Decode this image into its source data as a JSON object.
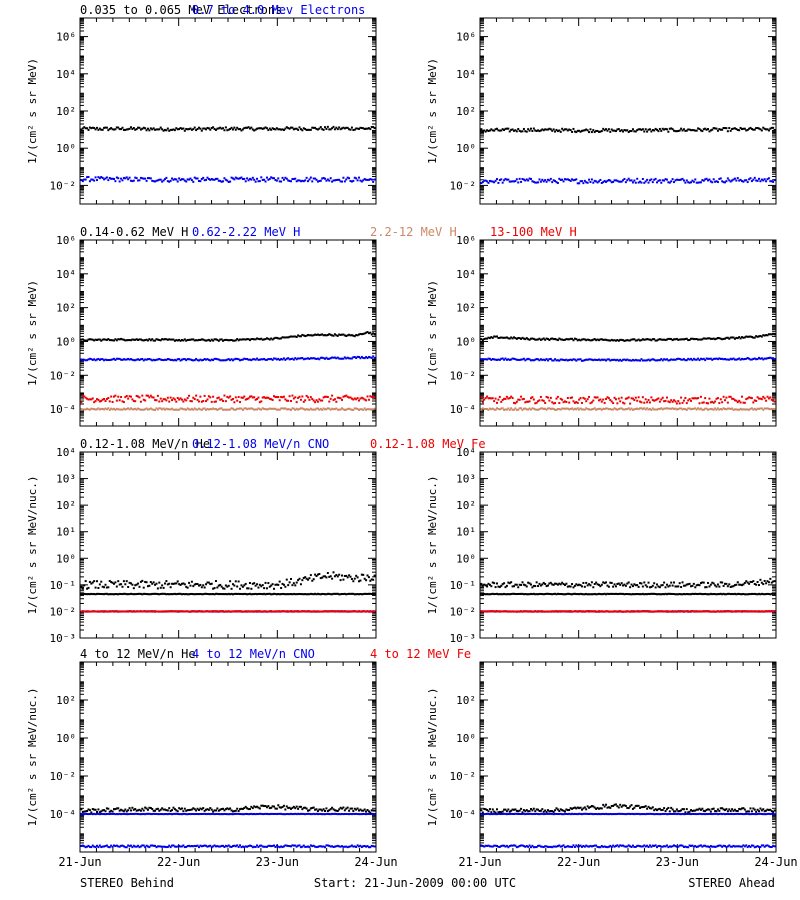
{
  "colors": {
    "black": "#000000",
    "blue": "#0000ee",
    "tan": "#cc8866",
    "red": "#ee0000"
  },
  "footer": {
    "left": "STEREO Behind",
    "center": "Start: 21-Jun-2009 00:00 UTC",
    "right": "STEREO Ahead"
  },
  "chart_data": [
    {
      "type": "scatter",
      "row": 0,
      "side": "Behind",
      "scale": "log",
      "ylim": [
        0.001,
        10000000.0
      ],
      "grid": false,
      "title_parts": [
        {
          "text": "0.035 to 0.065 MeV Electrons",
          "color": "#000000"
        },
        {
          "text": "0.7 to 4.0 Mev Electrons",
          "color": "#0000ee"
        }
      ],
      "ylabel": "1/(cm² s sr MeV)",
      "y_ticks": [
        {
          "label": "10⁻²",
          "value": 0.01
        },
        {
          "label": "10⁰",
          "value": 1
        },
        {
          "label": "10²",
          "value": 100
        },
        {
          "label": "10⁴",
          "value": 10000
        },
        {
          "label": "10⁶",
          "value": 1000000
        }
      ],
      "x_ticks": [],
      "xlim": [
        0,
        3
      ],
      "series": [
        {
          "color": "#000000",
          "x": [
            0,
            0.5,
            1,
            1.5,
            2,
            2.5,
            3
          ],
          "y": [
            11,
            11,
            10.5,
            11,
            11,
            11.5,
            11.5
          ],
          "scatter": 0.09
        },
        {
          "color": "#0000ee",
          "x": [
            0,
            0.5,
            1,
            1.5,
            2,
            2.5,
            3
          ],
          "y": [
            0.022,
            0.021,
            0.02,
            0.02,
            0.021,
            0.021,
            0.02
          ],
          "scatter": 0.12
        }
      ]
    },
    {
      "type": "scatter",
      "row": 0,
      "side": "Ahead",
      "scale": "log",
      "ylim": [
        0.001,
        10000000.0
      ],
      "grid": false,
      "title_parts": [],
      "ylabel": "1/(cm² s sr MeV)",
      "y_ticks": [
        {
          "label": "10⁻²",
          "value": 0.01
        },
        {
          "label": "10⁰",
          "value": 1
        },
        {
          "label": "10²",
          "value": 100
        },
        {
          "label": "10⁴",
          "value": 10000
        },
        {
          "label": "10⁶",
          "value": 1000000
        }
      ],
      "x_ticks": [],
      "xlim": [
        0,
        3
      ],
      "series": [
        {
          "color": "#000000",
          "x": [
            0,
            0.5,
            1,
            1.5,
            2,
            2.5,
            3
          ],
          "y": [
            9,
            9.5,
            9,
            9,
            9.5,
            10,
            10.5
          ],
          "scatter": 0.09
        },
        {
          "color": "#0000ee",
          "x": [
            0,
            0.5,
            1,
            1.5,
            2,
            2.5,
            3
          ],
          "y": [
            0.017,
            0.018,
            0.017,
            0.018,
            0.018,
            0.019,
            0.02
          ],
          "scatter": 0.12
        }
      ]
    },
    {
      "type": "scatter",
      "row": 1,
      "side": "Behind",
      "scale": "log",
      "ylim": [
        1e-05,
        1000000.0
      ],
      "grid": false,
      "title_parts": [
        {
          "text": "0.14-0.62 MeV H",
          "color": "#000000"
        },
        {
          "text": "0.62-2.22 MeV H",
          "color": "#0000ee"
        },
        {
          "text": "2.2-12 MeV H",
          "color": "#cc8866"
        },
        {
          "text": "13-100 MeV H",
          "color": "#ee0000"
        }
      ],
      "ylabel": "1/(cm² s sr MeV)",
      "y_ticks": [
        {
          "label": "10⁻⁴",
          "value": 0.0001
        },
        {
          "label": "10⁻²",
          "value": 0.01
        },
        {
          "label": "10⁰",
          "value": 1
        },
        {
          "label": "10²",
          "value": 100
        },
        {
          "label": "10⁴",
          "value": 10000
        },
        {
          "label": "10⁶",
          "value": 1000000
        }
      ],
      "x_ticks": [],
      "xlim": [
        0,
        3
      ],
      "series": [
        {
          "color": "#000000",
          "x": [
            0,
            0.5,
            1,
            1.5,
            2,
            2.25,
            2.5,
            2.8,
            2.9,
            3
          ],
          "y": [
            1.2,
            1.3,
            1.2,
            1.2,
            1.5,
            2.2,
            2.5,
            2.2,
            3.5,
            2.5
          ],
          "scatter": 0.05
        },
        {
          "color": "#0000ee",
          "x": [
            0,
            0.5,
            1,
            1.5,
            2,
            2.5,
            3
          ],
          "y": [
            0.085,
            0.085,
            0.082,
            0.085,
            0.09,
            0.1,
            0.12
          ],
          "scatter": 0.05
        },
        {
          "color": "#ee0000",
          "x": [
            0,
            0.5,
            1,
            1.5,
            2,
            2.5,
            3
          ],
          "y": [
            0.0004,
            0.0004,
            0.0004,
            0.0004,
            0.0004,
            0.0004,
            0.0004
          ],
          "scatter": 0.2
        },
        {
          "color": "#cc8866",
          "x": [
            0,
            0.5,
            1,
            1.5,
            2,
            2.5,
            3
          ],
          "y": [
            0.0001,
            0.0001,
            0.0001,
            0.0001,
            0.0001,
            0.0001,
            0.0001
          ],
          "scatter": 0.05
        }
      ]
    },
    {
      "type": "scatter",
      "row": 1,
      "side": "Ahead",
      "scale": "log",
      "ylim": [
        1e-05,
        1000000.0
      ],
      "grid": false,
      "title_parts": [],
      "ylabel": "1/(cm² s sr MeV)",
      "y_ticks": [
        {
          "label": "10⁻⁴",
          "value": 0.0001
        },
        {
          "label": "10⁻²",
          "value": 0.01
        },
        {
          "label": "10⁰",
          "value": 1
        },
        {
          "label": "10²",
          "value": 100
        },
        {
          "label": "10⁴",
          "value": 10000
        },
        {
          "label": "10⁶",
          "value": 1000000
        }
      ],
      "x_ticks": [],
      "xlim": [
        0,
        3
      ],
      "series": [
        {
          "color": "#000000",
          "x": [
            0,
            0.15,
            0.5,
            1,
            1.5,
            2,
            2.5,
            2.8,
            3
          ],
          "y": [
            1.2,
            1.8,
            1.4,
            1.3,
            1.2,
            1.3,
            1.5,
            1.9,
            3.0
          ],
          "scatter": 0.05
        },
        {
          "color": "#0000ee",
          "x": [
            0,
            0.5,
            1,
            1.5,
            2,
            2.5,
            3
          ],
          "y": [
            0.09,
            0.085,
            0.08,
            0.08,
            0.085,
            0.09,
            0.1
          ],
          "scatter": 0.05
        },
        {
          "color": "#ee0000",
          "x": [
            0,
            0.5,
            1,
            1.5,
            2,
            2.5,
            3
          ],
          "y": [
            0.00035,
            0.00035,
            0.00033,
            0.00033,
            0.00033,
            0.00035,
            0.00035
          ],
          "scatter": 0.2
        },
        {
          "color": "#cc8866",
          "x": [
            0,
            0.5,
            1,
            1.5,
            2,
            2.5,
            3
          ],
          "y": [
            0.0001,
            0.0001,
            0.0001,
            0.0001,
            0.0001,
            0.0001,
            0.0001
          ],
          "scatter": 0.05
        }
      ]
    },
    {
      "type": "scatter",
      "row": 2,
      "side": "Behind",
      "scale": "log",
      "ylim": [
        0.001,
        10000.0
      ],
      "grid": false,
      "title_parts": [
        {
          "text": "0.12-1.08 MeV/n He",
          "color": "#000000"
        },
        {
          "text": "0.12-1.08 MeV/n CNO",
          "color": "#0000ee"
        },
        {
          "text": "0.12-1.08 MeV Fe",
          "color": "#ee0000"
        }
      ],
      "ylabel": "1/(cm² s sr MeV/nuc.)",
      "y_ticks": [
        {
          "label": "10⁻³",
          "value": 0.001
        },
        {
          "label": "10⁻²",
          "value": 0.01
        },
        {
          "label": "10⁻¹",
          "value": 0.1
        },
        {
          "label": "10⁰",
          "value": 1
        },
        {
          "label": "10¹",
          "value": 10
        },
        {
          "label": "10²",
          "value": 100
        },
        {
          "label": "10³",
          "value": 1000
        },
        {
          "label": "10⁴",
          "value": 10000
        }
      ],
      "x_ticks": [],
      "xlim": [
        0,
        3
      ],
      "series": [
        {
          "color": "#000000",
          "x": [
            0,
            0.5,
            1,
            1.5,
            2,
            2.5,
            3
          ],
          "y": [
            0.045,
            0.045,
            0.045,
            0.045,
            0.045,
            0.045,
            0.045
          ],
          "scatter": 0.01
        },
        {
          "color": "#000000",
          "x": [
            0,
            0.5,
            1,
            1.5,
            2,
            2.2,
            2.5,
            2.8,
            3
          ],
          "y": [
            0.1,
            0.1,
            0.1,
            0.1,
            0.1,
            0.13,
            0.22,
            0.18,
            0.2
          ],
          "scatter": 0.15
        },
        {
          "color": "#0000ee",
          "x": [
            0,
            0.5,
            1,
            1.5,
            2,
            2.5,
            3
          ],
          "y": [
            0.01,
            0.01,
            0.01,
            0.01,
            0.01,
            0.01,
            0.01
          ],
          "scatter": 0.01
        },
        {
          "color": "#ee0000",
          "x": [
            0,
            0.5,
            1,
            1.5,
            2,
            2.5,
            3
          ],
          "y": [
            0.01,
            0.01,
            0.01,
            0.01,
            0.01,
            0.01,
            0.01
          ],
          "scatter": 0.01
        }
      ]
    },
    {
      "type": "scatter",
      "row": 2,
      "side": "Ahead",
      "scale": "log",
      "ylim": [
        0.001,
        10000.0
      ],
      "grid": false,
      "title_parts": [],
      "ylabel": "1/(cm² s sr MeV/nuc.)",
      "y_ticks": [
        {
          "label": "10⁻³",
          "value": 0.001
        },
        {
          "label": "10⁻²",
          "value": 0.01
        },
        {
          "label": "10⁻¹",
          "value": 0.1
        },
        {
          "label": "10⁰",
          "value": 1
        },
        {
          "label": "10¹",
          "value": 10
        },
        {
          "label": "10²",
          "value": 100
        },
        {
          "label": "10³",
          "value": 1000
        },
        {
          "label": "10⁴",
          "value": 10000
        }
      ],
      "x_ticks": [],
      "xlim": [
        0,
        3
      ],
      "series": [
        {
          "color": "#000000",
          "x": [
            0,
            0.5,
            1,
            1.5,
            2,
            2.5,
            3
          ],
          "y": [
            0.045,
            0.045,
            0.045,
            0.045,
            0.045,
            0.045,
            0.045
          ],
          "scatter": 0.01
        },
        {
          "color": "#000000",
          "x": [
            0,
            0.5,
            1,
            1.5,
            2,
            2.5,
            2.8,
            3
          ],
          "y": [
            0.1,
            0.1,
            0.1,
            0.1,
            0.1,
            0.1,
            0.12,
            0.15
          ],
          "scatter": 0.1
        },
        {
          "color": "#0000ee",
          "x": [
            0,
            0.5,
            1,
            1.5,
            2,
            2.5,
            3
          ],
          "y": [
            0.01,
            0.01,
            0.01,
            0.01,
            0.01,
            0.01,
            0.01
          ],
          "scatter": 0.01
        },
        {
          "color": "#ee0000",
          "x": [
            0,
            0.5,
            1,
            1.5,
            2,
            2.5,
            3
          ],
          "y": [
            0.01,
            0.01,
            0.01,
            0.01,
            0.01,
            0.01,
            0.01
          ],
          "scatter": 0.01
        }
      ]
    },
    {
      "type": "scatter",
      "row": 3,
      "side": "Behind",
      "scale": "log",
      "ylim": [
        1e-06,
        10000.0
      ],
      "grid": false,
      "title_parts": [
        {
          "text": "4 to 12 MeV/n He",
          "color": "#000000"
        },
        {
          "text": "4 to 12 MeV/n CNO",
          "color": "#0000ee"
        },
        {
          "text": "4 to 12 MeV Fe",
          "color": "#ee0000"
        }
      ],
      "ylabel": "1/(cm² s sr MeV/nuc.)",
      "y_ticks": [
        {
          "label": "10⁻⁴",
          "value": 0.0001
        },
        {
          "label": "10⁻²",
          "value": 0.01
        },
        {
          "label": "10⁰",
          "value": 1
        },
        {
          "label": "10²",
          "value": 100
        }
      ],
      "x_ticks": [
        {
          "label": "21-Jun",
          "value": 0
        },
        {
          "label": "22-Jun",
          "value": 1
        },
        {
          "label": "23-Jun",
          "value": 2
        },
        {
          "label": "24-Jun",
          "value": 3
        }
      ],
      "xlim": [
        0,
        3
      ],
      "series": [
        {
          "color": "#0000ee",
          "x": [
            0,
            0.5,
            1,
            1.5,
            2,
            2.5,
            3
          ],
          "y": [
            0.0001,
            0.0001,
            0.0001,
            0.0001,
            0.0001,
            0.0001,
            0.0001
          ],
          "scatter": 0.01
        },
        {
          "color": "#000000",
          "x": [
            0.1,
            0.7,
            1.5,
            1.9,
            2.4,
            2.7,
            2.9
          ],
          "y": [
            0.00015,
            0.00018,
            0.00016,
            0.00025,
            0.00017,
            0.00018,
            0.00015
          ],
          "scatter": 0.1
        },
        {
          "color": "#0000ee",
          "x": [
            0,
            1,
            2,
            3
          ],
          "y": [
            2e-06,
            2e-06,
            2e-06,
            2e-06
          ],
          "scatter": 0.05
        }
      ]
    },
    {
      "type": "scatter",
      "row": 3,
      "side": "Ahead",
      "scale": "log",
      "ylim": [
        1e-06,
        10000.0
      ],
      "grid": false,
      "title_parts": [],
      "ylabel": "1/(cm² s sr MeV/nuc.)",
      "y_ticks": [
        {
          "label": "10⁻⁴",
          "value": 0.0001
        },
        {
          "label": "10⁻²",
          "value": 0.01
        },
        {
          "label": "10⁰",
          "value": 1
        },
        {
          "label": "10²",
          "value": 100
        }
      ],
      "x_ticks": [
        {
          "label": "21-Jun",
          "value": 0
        },
        {
          "label": "22-Jun",
          "value": 1
        },
        {
          "label": "23-Jun",
          "value": 2
        },
        {
          "label": "24-Jun",
          "value": 3
        }
      ],
      "xlim": [
        0,
        3
      ],
      "series": [
        {
          "color": "#0000ee",
          "x": [
            0,
            0.5,
            1,
            1.5,
            2,
            2.5,
            3
          ],
          "y": [
            0.0001,
            0.0001,
            0.0001,
            0.0001,
            0.0001,
            0.0001,
            0.0001
          ],
          "scatter": 0.01
        },
        {
          "color": "#000000",
          "x": [
            0.2,
            0.8,
            1.4,
            1.45,
            2.1,
            2.5,
            2.8
          ],
          "y": [
            0.00015,
            0.00016,
            0.00028,
            0.00025,
            0.00015,
            0.00017,
            0.00016
          ],
          "scatter": 0.1
        },
        {
          "color": "#0000ee",
          "x": [
            0,
            1,
            2,
            3
          ],
          "y": [
            2e-06,
            2e-06,
            2e-06,
            2e-06
          ],
          "scatter": 0.05
        }
      ]
    }
  ]
}
